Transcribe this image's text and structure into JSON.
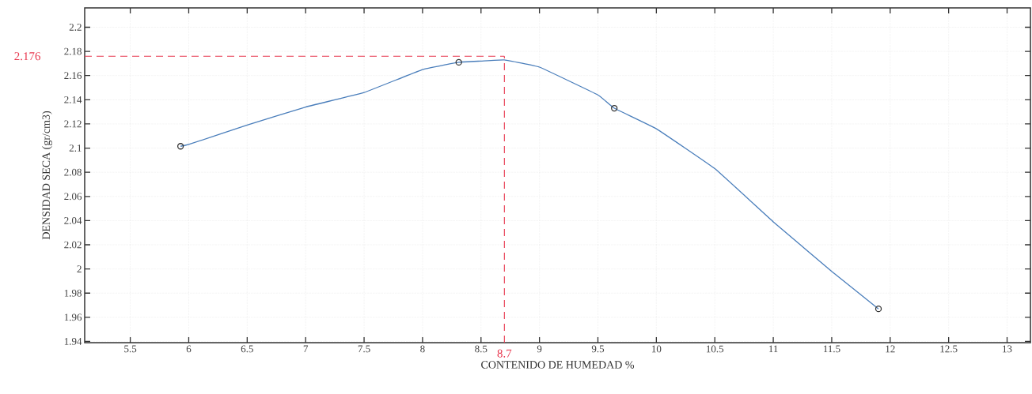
{
  "chart_data": {
    "type": "line",
    "xlabel": "CONTENIDO DE HUMEDAD %",
    "ylabel": "DENSIDAD SECA (gr/cm3)",
    "series": [
      {
        "color": "#4a7ebb",
        "marker": "none",
        "x": [
          5.93,
          6.0,
          6.5,
          7.0,
          7.5,
          8.0,
          8.31,
          8.5,
          8.7,
          9.0,
          9.5,
          9.64,
          10.0,
          10.5,
          11.0,
          11.5,
          11.9
        ],
        "values": [
          2.1015,
          2.103,
          2.119,
          2.134,
          2.146,
          2.165,
          2.171,
          2.172,
          2.173,
          2.167,
          2.144,
          2.133,
          2.116,
          2.083,
          2.039,
          1.998,
          1.967
        ]
      },
      {
        "type": "scatter",
        "color": "#333333",
        "marker": "circle",
        "x": [
          5.93,
          8.31,
          9.64,
          11.9
        ],
        "values": [
          2.1015,
          2.171,
          2.133,
          1.967
        ]
      }
    ],
    "xlim": [
      5.11,
      13.2
    ],
    "ylim": [
      1.939,
      2.216
    ],
    "xticks": [
      5.5,
      6,
      6.5,
      7,
      7.5,
      8,
      8.5,
      9,
      9.5,
      10,
      10.5,
      11,
      11.5,
      12,
      12.5,
      13
    ],
    "yticks": [
      1.94,
      1.96,
      1.98,
      2,
      2.02,
      2.04,
      2.06,
      2.08,
      2.1,
      2.12,
      2.14,
      2.16,
      2.18,
      2.2
    ],
    "ref_lines": [
      {
        "axis": "y",
        "value": 2.176,
        "label": "2.176",
        "color": "#e8384f",
        "line_style": "dashed"
      },
      {
        "axis": "x",
        "value": 8.7,
        "label": "8.7",
        "color": "#e8384f",
        "line_style": "dashed"
      }
    ],
    "grid": true
  }
}
